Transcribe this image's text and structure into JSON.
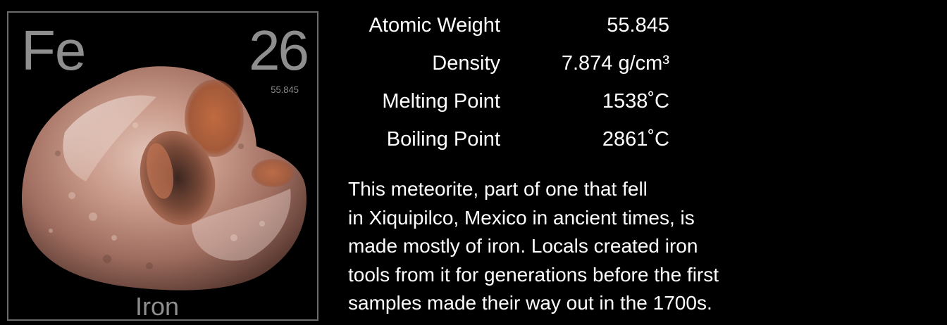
{
  "element": {
    "symbol": "Fe",
    "atomic_number": "26",
    "atomic_weight_small": "55.845",
    "name": "Iron",
    "image_icon": "meteorite-specimen"
  },
  "properties": [
    {
      "label": "Atomic Weight",
      "value": "55.845"
    },
    {
      "label": "Density",
      "value": "7.874 g/cm³"
    },
    {
      "label": "Melting Point",
      "value": "1538˚C"
    },
    {
      "label": "Boiling Point",
      "value": "2861˚C"
    }
  ],
  "description": [
    "This meteorite, part of one that fell",
    "in Xiquipilco, Mexico in ancient times, is",
    "made mostly of iron.  Locals created iron",
    "tools from it for generations before the first",
    "samples made their way out in the 1700s."
  ],
  "colors": {
    "background": "#000000",
    "tile_text": "#8e8e8e",
    "tile_border": "#6a6a6a",
    "body_text": "#ffffff",
    "rock_base": "#b8867a"
  }
}
